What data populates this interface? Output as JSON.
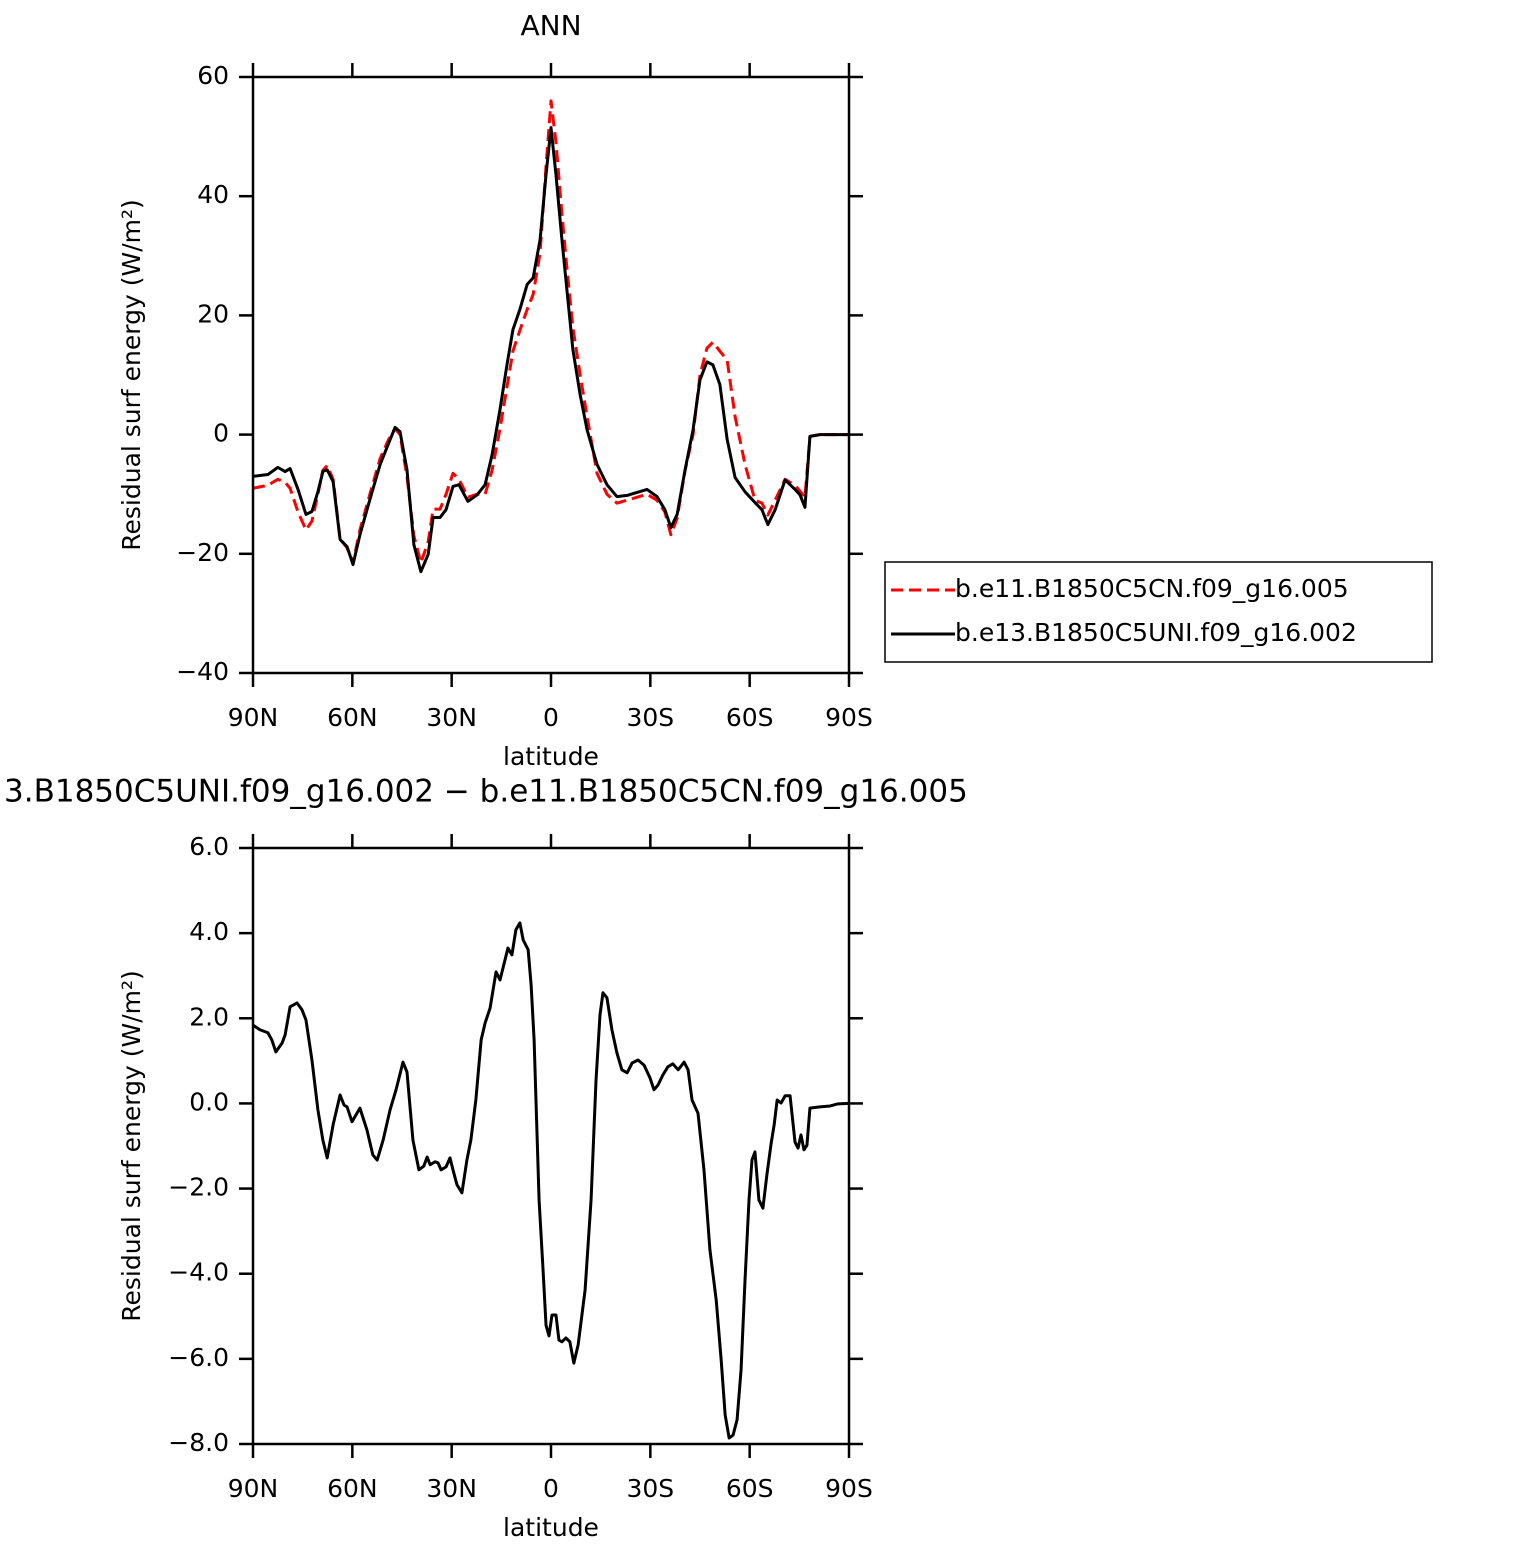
{
  "chart_data": [
    {
      "type": "line",
      "title": "ANN",
      "xlabel": "latitude",
      "ylabel": "Residual surf energy (W/m²)",
      "xlim": [
        90,
        -90
      ],
      "ylim": [
        -40,
        60
      ],
      "xticks": [
        {
          "value": 90,
          "label": "90N"
        },
        {
          "value": 60,
          "label": "60N"
        },
        {
          "value": 30,
          "label": "30N"
        },
        0,
        {
          "value": -30,
          "label": "30S"
        },
        {
          "value": -60,
          "label": "60S"
        },
        {
          "value": -90,
          "label": "90S"
        }
      ],
      "yticks": [
        {
          "value": -40,
          "label": "−40"
        },
        {
          "value": -20,
          "label": "−20"
        },
        0,
        20,
        40,
        60
      ],
      "legend": "right",
      "x": [
        90,
        85.5,
        82.5,
        80.3,
        78.8,
        76.4,
        74.0,
        72.2,
        70.4,
        68.9,
        67.6,
        65.8,
        63.7,
        61.6,
        59.8,
        57.7,
        54.7,
        51.6,
        49.2,
        47.1,
        45.6,
        43.5,
        41.4,
        39.3,
        37.1,
        35.6,
        33.5,
        31.7,
        29.6,
        27.8,
        25.1,
        22.3,
        19.9,
        17.8,
        15.4,
        13.3,
        11.5,
        9.4,
        7.2,
        5.4,
        3.3,
        1.5,
        0,
        -1.5,
        -3.3,
        -4.8,
        -6.6,
        -8.8,
        -10.9,
        -13.9,
        -16.9,
        -19.9,
        -23.0,
        -26.0,
        -29.0,
        -32.0,
        -34.4,
        -36.2,
        -38.1,
        -40.5,
        -42.9,
        -45.0,
        -47.1,
        -48.9,
        -51.0,
        -53.2,
        -55.6,
        -58.6,
        -61.6,
        -63.7,
        -65.5,
        -67.7,
        -70.7,
        -73.7,
        -75.2,
        -76.7,
        -78.2,
        -81.2,
        -90
      ],
      "series": [
        {
          "name": "b.e11.B1850C5CN.f09_g16.005",
          "color": "#ff0000",
          "line_style": "dashed",
          "values": [
            -9.0,
            -8.5,
            -7.5,
            -8.0,
            -9.0,
            -13,
            -16,
            -14.5,
            -10,
            -6,
            -5.2,
            -7.5,
            -17.5,
            -19,
            -21.5,
            -16,
            -10,
            -4,
            -1,
            1,
            0,
            -7,
            -17,
            -21.5,
            -18,
            -12.5,
            -12.5,
            -10,
            -6.5,
            -7.5,
            -10.5,
            -10,
            -10,
            -6,
            1,
            8,
            14,
            17.5,
            21,
            23.5,
            30.5,
            45,
            56,
            49,
            37,
            28,
            18,
            10,
            3,
            -6.5,
            -10,
            -11.5,
            -11,
            -10.5,
            -10,
            -11,
            -13,
            -16.8,
            -14,
            -6,
            0,
            10,
            14.5,
            15.5,
            14,
            12.5,
            3,
            -5,
            -11,
            -11.5,
            -13.5,
            -11,
            -7.5,
            -8.5,
            -9.5,
            -10.5,
            -0.3,
            0,
            0
          ]
        },
        {
          "name": "b.e13.B1850C5UNI.f09_g16.002",
          "color": "#000000",
          "line_style": "solid",
          "values": [
            -7.0,
            -6.7,
            -5.5,
            -6.2,
            -5.7,
            -9.2,
            -13.4,
            -12.9,
            -9.6,
            -6.2,
            -5.9,
            -7.9,
            -17.6,
            -18.8,
            -21.8,
            -16.8,
            -10.9,
            -5.0,
            -1.7,
            1.2,
            0.5,
            -5.9,
            -18.5,
            -23.0,
            -20.1,
            -13.9,
            -13.9,
            -12.6,
            -8.7,
            -8.4,
            -11.2,
            -10.1,
            -8.4,
            -3.4,
            4.2,
            11.7,
            17.6,
            21.0,
            25.2,
            26.3,
            32.7,
            43.6,
            51.5,
            43.6,
            32.7,
            24.3,
            14.3,
            6.7,
            0.8,
            -5.0,
            -8.4,
            -10.4,
            -10.2,
            -9.7,
            -9.2,
            -10.4,
            -12.6,
            -15.6,
            -13.4,
            -5.9,
            0.8,
            9.2,
            12.2,
            11.7,
            8.4,
            -0.8,
            -7.2,
            -9.6,
            -11.4,
            -12.6,
            -15.1,
            -12.6,
            -7.6,
            -9.2,
            -10.1,
            -12.2,
            -0.3,
            0,
            0
          ]
        }
      ]
    },
    {
      "type": "line",
      "title": "3.B1850C5UNI.f09_g16.002 − b.e11.B1850C5CN.f09_g16.005",
      "xlabel": "latitude",
      "ylabel": "Residual surf energy (W/m²)",
      "xlim": [
        90,
        -90
      ],
      "ylim": [
        -8,
        6
      ],
      "xticks": [
        {
          "value": 90,
          "label": "90N"
        },
        {
          "value": 60,
          "label": "60N"
        },
        {
          "value": 30,
          "label": "30N"
        },
        0,
        {
          "value": -30,
          "label": "30S"
        },
        {
          "value": -60,
          "label": "60S"
        },
        {
          "value": -90,
          "label": "90S"
        }
      ],
      "yticks": [
        {
          "value": -8,
          "label": "−8.0"
        },
        {
          "value": -6,
          "label": "−6.0"
        },
        {
          "value": -4,
          "label": "−4.0"
        },
        {
          "value": -2,
          "label": "−2.0"
        },
        {
          "value": 0,
          "label": "0.0"
        },
        {
          "value": 2,
          "label": "2.0"
        },
        {
          "value": 4,
          "label": "4.0"
        },
        {
          "value": 6,
          "label": "6.0"
        }
      ],
      "x": [
        90,
        87.9,
        85.5,
        84.3,
        83.1,
        81.2,
        80.3,
        78.8,
        76.7,
        75.2,
        74.0,
        72.2,
        70.4,
        68.9,
        67.6,
        65.8,
        63.7,
        62.5,
        61.6,
        60.1,
        57.7,
        55.6,
        53.8,
        52.5,
        50.7,
        48.6,
        46.8,
        44.7,
        43.5,
        41.7,
        39.9,
        38.4,
        37.4,
        36.5,
        35.0,
        34.1,
        33.2,
        31.7,
        30.5,
        29.6,
        28.4,
        26.9,
        25.4,
        24.2,
        22.7,
        21.1,
        19.9,
        18.4,
        16.6,
        15.4,
        13.0,
        11.8,
        10.6,
        9.4,
        8.4,
        6.9,
        6.0,
        5.1,
        3.6,
        2.4,
        1.5,
        0.6,
        -0.3,
        -1.5,
        -2.4,
        -3.3,
        -4.5,
        -5.7,
        -6.9,
        -8.2,
        -10.3,
        -12.1,
        -13.6,
        -14.8,
        -15.7,
        -16.9,
        -18.4,
        -19.9,
        -21.4,
        -23.0,
        -24.5,
        -26.3,
        -28.1,
        -29.9,
        -31.1,
        -32.3,
        -33.8,
        -35.3,
        -36.8,
        -38.4,
        -40.2,
        -41.4,
        -42.6,
        -44.4,
        -46.2,
        -48.0,
        -49.9,
        -51.4,
        -52.6,
        -53.8,
        -55.0,
        -56.2,
        -57.4,
        -58.6,
        -59.8,
        -60.7,
        -61.6,
        -62.8,
        -64.0,
        -65.2,
        -66.5,
        -67.4,
        -68.3,
        -69.5,
        -70.7,
        -72.2,
        -73.7,
        -74.6,
        -75.5,
        -76.4,
        -77.3,
        -78.2,
        -81.2,
        -84.3,
        -86.7,
        -90
      ],
      "series": [
        {
          "color": "#000000",
          "values": [
            1.84,
            1.73,
            1.66,
            1.49,
            1.21,
            1.42,
            1.61,
            2.27,
            2.36,
            2.2,
            1.96,
            1.02,
            -0.15,
            -0.86,
            -1.28,
            -0.5,
            0.2,
            -0.04,
            -0.08,
            -0.43,
            -0.11,
            -0.62,
            -1.21,
            -1.33,
            -0.86,
            -0.15,
            0.32,
            0.97,
            0.74,
            -0.86,
            -1.56,
            -1.47,
            -1.26,
            -1.44,
            -1.37,
            -1.4,
            -1.56,
            -1.49,
            -1.28,
            -1.56,
            -1.91,
            -2.1,
            -1.33,
            -0.86,
            0.08,
            1.49,
            1.89,
            2.24,
            3.09,
            2.9,
            3.65,
            3.49,
            4.08,
            4.24,
            3.84,
            3.61,
            2.78,
            1.49,
            -2.27,
            -3.91,
            -5.21,
            -5.46,
            -4.97,
            -4.97,
            -5.56,
            -5.6,
            -5.51,
            -5.6,
            -6.1,
            -5.67,
            -4.38,
            -2.27,
            0.55,
            2.08,
            2.6,
            2.48,
            1.73,
            1.19,
            0.79,
            0.72,
            0.95,
            1.02,
            0.9,
            0.6,
            0.32,
            0.43,
            0.67,
            0.86,
            0.93,
            0.79,
            0.97,
            0.79,
            0.08,
            -0.23,
            -1.56,
            -3.44,
            -4.62,
            -6.03,
            -7.32,
            -7.86,
            -7.79,
            -7.43,
            -6.26,
            -4.15,
            -2.27,
            -1.33,
            -1.14,
            -2.27,
            -2.46,
            -1.68,
            -0.93,
            -0.5,
            0.08,
            0.01,
            0.18,
            0.18,
            -0.91,
            -1.05,
            -0.74,
            -1.09,
            -0.98,
            -0.11,
            -0.08,
            -0.06,
            -0.01,
            0
          ]
        }
      ]
    }
  ]
}
